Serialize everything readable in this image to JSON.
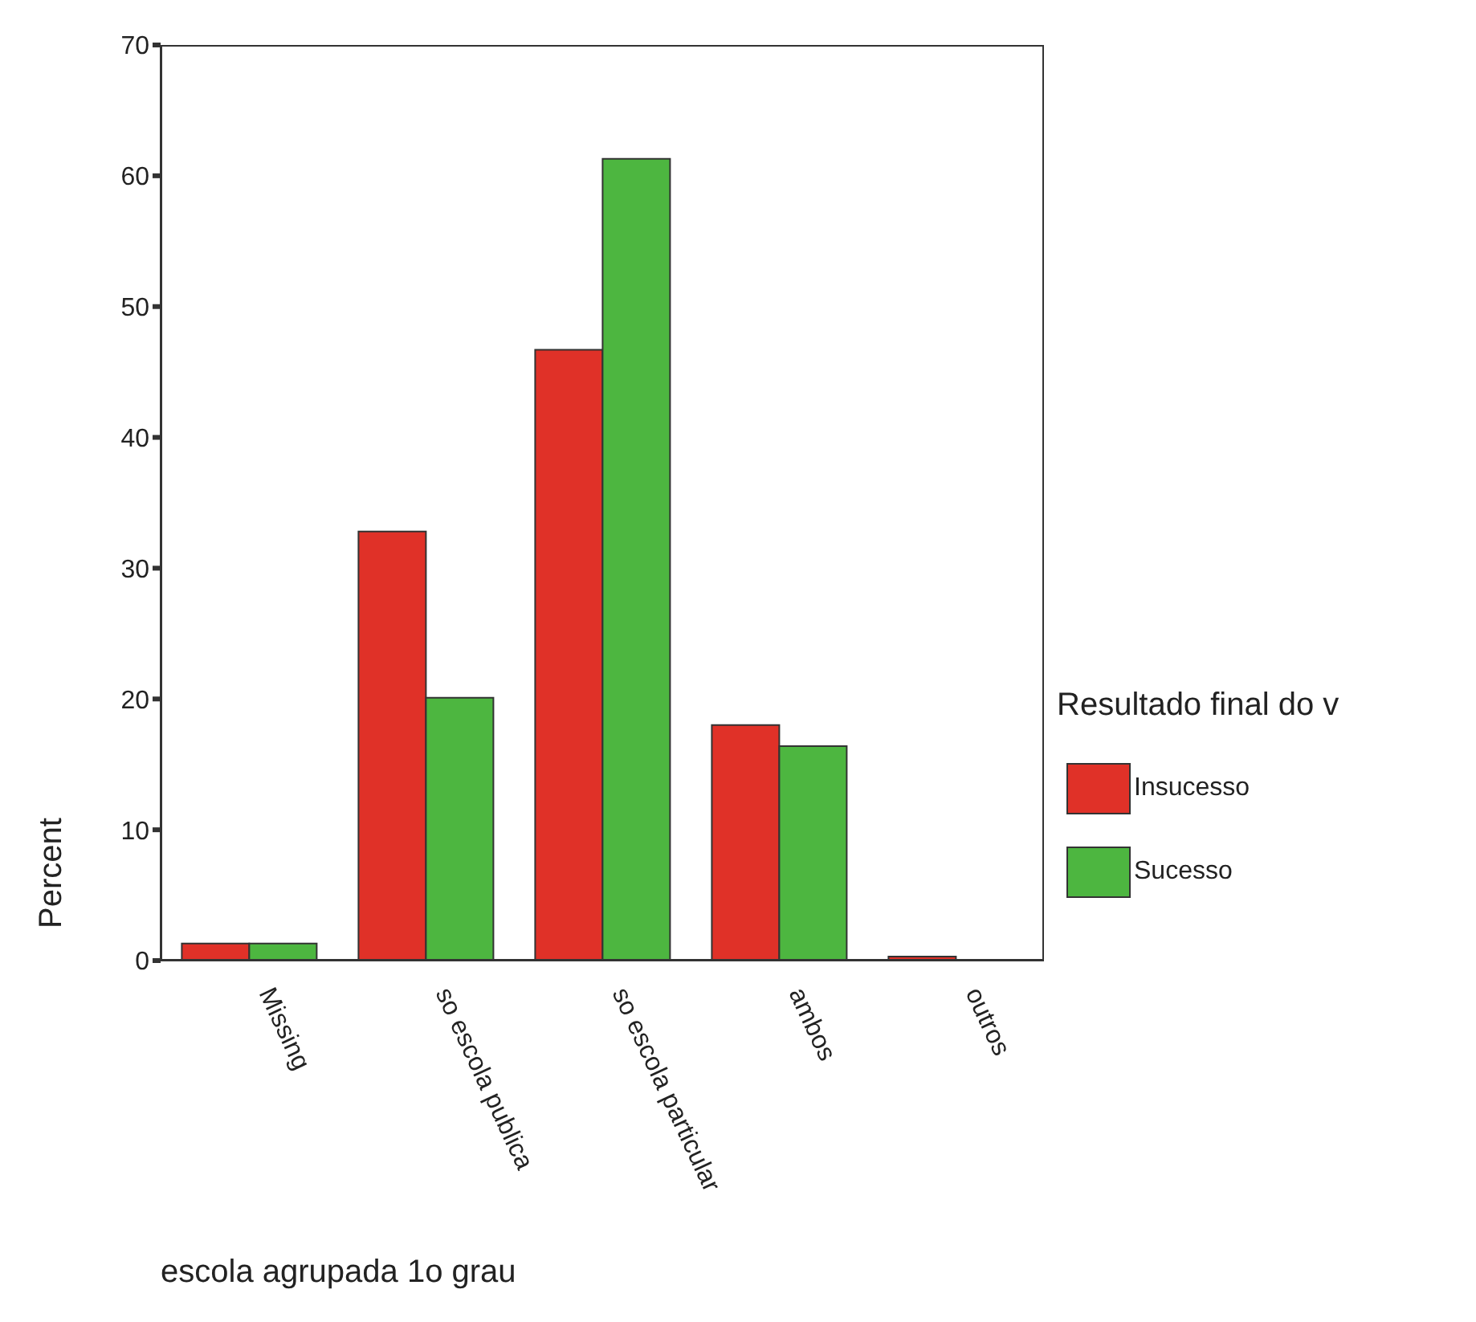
{
  "chart_data": {
    "type": "bar",
    "xlabel": "escola agrupada 1o grau",
    "ylabel": "Percent",
    "legend_title": "Resultado final do v",
    "categories": [
      "Missing",
      "so escola publica",
      "so escola particular",
      "ambos",
      "outros"
    ],
    "series": [
      {
        "name": "Insucesso",
        "color": "#e03128",
        "values": [
          1.3,
          32.8,
          46.7,
          18.0,
          0.3
        ]
      },
      {
        "name": "Sucesso",
        "color": "#4db640",
        "values": [
          1.3,
          20.1,
          61.3,
          16.4,
          0
        ]
      }
    ],
    "ylim": [
      0,
      70
    ],
    "yticks": [
      0,
      10,
      20,
      30,
      40,
      50,
      60,
      70
    ],
    "legend": "right"
  }
}
